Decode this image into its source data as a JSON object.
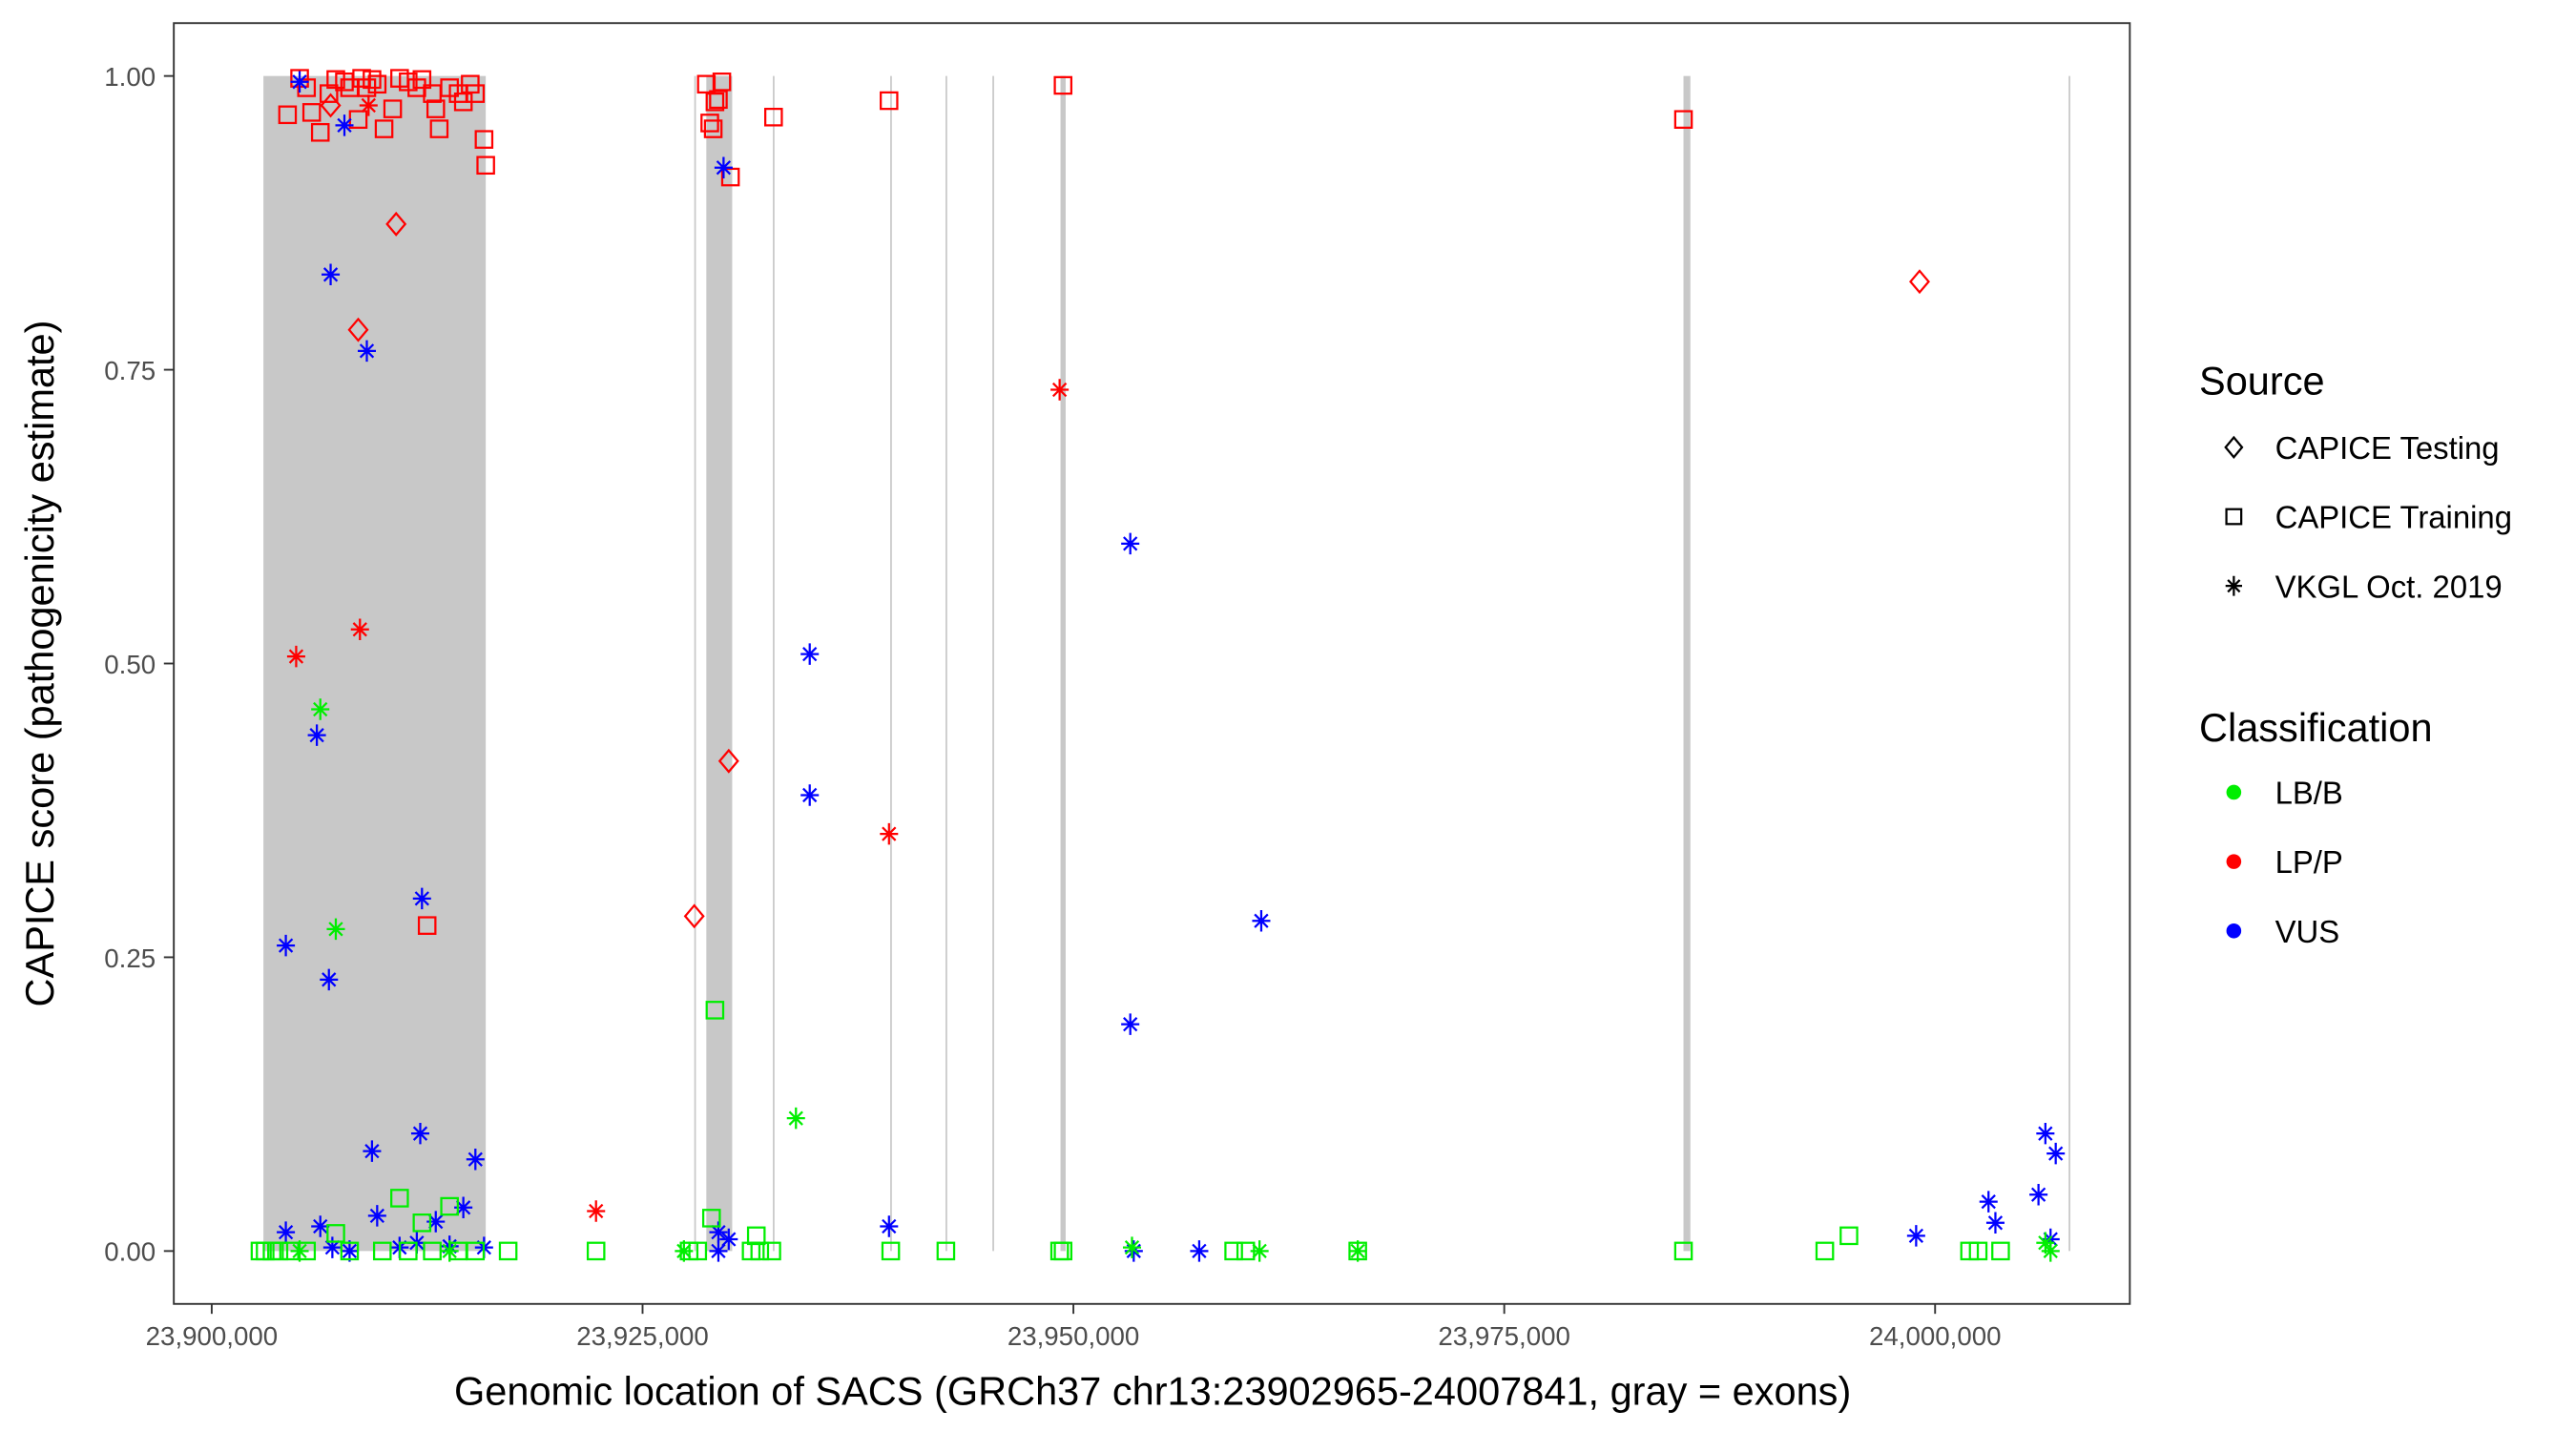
{
  "chart_data": {
    "type": "scatter",
    "xlabel": "Genomic location of SACS (GRCh37 chr13:23902965-24007841, gray = exons)",
    "ylabel": "CAPICE score (pathogenicity estimate)",
    "xlim": [
      23897800,
      24011300
    ],
    "ylim": [
      -0.045,
      1.045
    ],
    "x_ticks": [
      23900000,
      23925000,
      23950000,
      23975000,
      24000000
    ],
    "x_tick_labels": [
      "23,900,000",
      "23,925,000",
      "23,950,000",
      "23,975,000",
      "24,000,000"
    ],
    "y_ticks": [
      0,
      0.25,
      0.5,
      0.75,
      1.0
    ],
    "y_tick_labels": [
      "0.00",
      "0.25",
      "0.50",
      "0.75",
      "1.00"
    ],
    "grid": false,
    "exons": [
      [
        23903000,
        23915900
      ],
      [
        23928000,
        23928060
      ],
      [
        23928700,
        23930200
      ],
      [
        23932560,
        23932620
      ],
      [
        23939370,
        23939430
      ],
      [
        23942580,
        23942640
      ],
      [
        23945300,
        23945360
      ],
      [
        23949250,
        23949550
      ],
      [
        23985400,
        23985800
      ],
      [
        24007750,
        24007810
      ]
    ],
    "exon_color": "#c8c8c8",
    "legend_placement": "right",
    "legend": {
      "source_title": "Source",
      "sources": [
        {
          "key": "testing",
          "label": "CAPICE Testing",
          "shape": "diamond"
        },
        {
          "key": "training",
          "label": "CAPICE Training",
          "shape": "square"
        },
        {
          "key": "vkgl",
          "label": "VKGL Oct. 2019",
          "shape": "asterisk"
        }
      ],
      "class_title": "Classification",
      "classes": [
        {
          "key": "LB/B",
          "label": "LB/B",
          "color": "#00ee00"
        },
        {
          "key": "LP/P",
          "label": "LP/P",
          "color": "#ff0000"
        },
        {
          "key": "VUS",
          "label": "VUS",
          "color": "#0000ff"
        }
      ]
    },
    "points": [
      [
        23904400,
        0.967,
        "training",
        "LP/P"
      ],
      [
        23905100,
        0.998,
        "training",
        "LP/P"
      ],
      [
        23905500,
        0.99,
        "training",
        "LP/P"
      ],
      [
        23905800,
        0.969,
        "training",
        "LP/P"
      ],
      [
        23906300,
        0.952,
        "training",
        "LP/P"
      ],
      [
        23906800,
        0.985,
        "training",
        "LP/P"
      ],
      [
        23907200,
        0.997,
        "training",
        "LP/P"
      ],
      [
        23907700,
        0.995,
        "training",
        "LP/P"
      ],
      [
        23908000,
        0.99,
        "training",
        "LP/P"
      ],
      [
        23908500,
        0.963,
        "training",
        "LP/P"
      ],
      [
        23908700,
        0.998,
        "training",
        "LP/P"
      ],
      [
        23909000,
        0.99,
        "training",
        "LP/P"
      ],
      [
        23909300,
        0.997,
        "training",
        "LP/P"
      ],
      [
        23909600,
        0.993,
        "training",
        "LP/P"
      ],
      [
        23910000,
        0.955,
        "training",
        "LP/P"
      ],
      [
        23910500,
        0.972,
        "training",
        "LP/P"
      ],
      [
        23910900,
        0.998,
        "training",
        "LP/P"
      ],
      [
        23911400,
        0.995,
        "training",
        "LP/P"
      ],
      [
        23911900,
        0.99,
        "training",
        "LP/P"
      ],
      [
        23912200,
        0.997,
        "training",
        "LP/P"
      ],
      [
        23912800,
        0.985,
        "training",
        "LP/P"
      ],
      [
        23913000,
        0.972,
        "training",
        "LP/P"
      ],
      [
        23913200,
        0.955,
        "training",
        "LP/P"
      ],
      [
        23913800,
        0.99,
        "training",
        "LP/P"
      ],
      [
        23914300,
        0.985,
        "training",
        "LP/P"
      ],
      [
        23914600,
        0.978,
        "training",
        "LP/P"
      ],
      [
        23915000,
        0.993,
        "training",
        "LP/P"
      ],
      [
        23915300,
        0.985,
        "training",
        "LP/P"
      ],
      [
        23915800,
        0.946,
        "training",
        "LP/P"
      ],
      [
        23915900,
        0.924,
        "training",
        "LP/P"
      ],
      [
        23912500,
        0.277,
        "training",
        "LP/P"
      ],
      [
        23928700,
        0.993,
        "training",
        "LP/P"
      ],
      [
        23928900,
        0.96,
        "training",
        "LP/P"
      ],
      [
        23929100,
        0.955,
        "training",
        "LP/P"
      ],
      [
        23929200,
        0.978,
        "training",
        "LP/P"
      ],
      [
        23929400,
        0.98,
        "training",
        "LP/P"
      ],
      [
        23929600,
        0.995,
        "training",
        "LP/P"
      ],
      [
        23930100,
        0.914,
        "training",
        "LP/P"
      ],
      [
        23932600,
        0.965,
        "training",
        "LP/P"
      ],
      [
        23939300,
        0.979,
        "training",
        "LP/P"
      ],
      [
        23949400,
        0.992,
        "training",
        "LP/P"
      ],
      [
        23985400,
        0.963,
        "training",
        "LP/P"
      ],
      [
        23906900,
        0.975,
        "testing",
        "LP/P"
      ],
      [
        23910700,
        0.874,
        "testing",
        "LP/P"
      ],
      [
        23908500,
        0.784,
        "testing",
        "LP/P"
      ],
      [
        23930000,
        0.417,
        "testing",
        "LP/P"
      ],
      [
        23928000,
        0.285,
        "testing",
        "LP/P"
      ],
      [
        23999100,
        0.825,
        "testing",
        "LP/P"
      ],
      [
        23904900,
        0.506,
        "vkgl",
        "LP/P"
      ],
      [
        23908600,
        0.529,
        "vkgl",
        "LP/P"
      ],
      [
        23949200,
        0.733,
        "vkgl",
        "LP/P"
      ],
      [
        23939300,
        0.355,
        "vkgl",
        "LP/P"
      ],
      [
        23922300,
        0.034,
        "vkgl",
        "LP/P"
      ],
      [
        23909100,
        0.975,
        "vkgl",
        "LP/P"
      ],
      [
        23905100,
        0.995,
        "vkgl",
        "VUS"
      ],
      [
        23907700,
        0.958,
        "vkgl",
        "VUS"
      ],
      [
        23906900,
        0.831,
        "vkgl",
        "VUS"
      ],
      [
        23909000,
        0.766,
        "vkgl",
        "VUS"
      ],
      [
        23929700,
        0.922,
        "vkgl",
        "VUS"
      ],
      [
        23953300,
        0.602,
        "vkgl",
        "VUS"
      ],
      [
        23934700,
        0.508,
        "vkgl",
        "VUS"
      ],
      [
        23934700,
        0.388,
        "vkgl",
        "VUS"
      ],
      [
        23906100,
        0.439,
        "vkgl",
        "VUS"
      ],
      [
        23912200,
        0.3,
        "vkgl",
        "VUS"
      ],
      [
        23960900,
        0.281,
        "vkgl",
        "VUS"
      ],
      [
        23904300,
        0.26,
        "vkgl",
        "VUS"
      ],
      [
        23906800,
        0.231,
        "vkgl",
        "VUS"
      ],
      [
        23953300,
        0.193,
        "vkgl",
        "VUS"
      ],
      [
        23909300,
        0.085,
        "vkgl",
        "VUS"
      ],
      [
        23912100,
        0.1,
        "vkgl",
        "VUS"
      ],
      [
        23915300,
        0.078,
        "vkgl",
        "VUS"
      ],
      [
        24006400,
        0.1,
        "vkgl",
        "VUS"
      ],
      [
        24007000,
        0.083,
        "vkgl",
        "VUS"
      ],
      [
        24006000,
        0.048,
        "vkgl",
        "VUS"
      ],
      [
        24003100,
        0.042,
        "vkgl",
        "VUS"
      ],
      [
        24003500,
        0.024,
        "vkgl",
        "VUS"
      ],
      [
        23998900,
        0.013,
        "vkgl",
        "VUS"
      ],
      [
        23939300,
        0.021,
        "vkgl",
        "VUS"
      ],
      [
        24006700,
        0.01,
        "vkgl",
        "VUS"
      ],
      [
        23904300,
        0.016,
        "vkgl",
        "VUS"
      ],
      [
        23906300,
        0.021,
        "vkgl",
        "VUS"
      ],
      [
        23909600,
        0.03,
        "vkgl",
        "VUS"
      ],
      [
        23913000,
        0.025,
        "vkgl",
        "VUS"
      ],
      [
        23914600,
        0.037,
        "vkgl",
        "VUS"
      ],
      [
        23929400,
        0.016,
        "vkgl",
        "VUS"
      ],
      [
        23930000,
        0.01,
        "vkgl",
        "VUS"
      ],
      [
        23953500,
        0.0,
        "vkgl",
        "VUS"
      ],
      [
        23957300,
        0.0,
        "vkgl",
        "VUS"
      ],
      [
        23907000,
        0.003,
        "vkgl",
        "VUS"
      ],
      [
        23910900,
        0.003,
        "vkgl",
        "VUS"
      ],
      [
        23911900,
        0.007,
        "vkgl",
        "VUS"
      ],
      [
        23915800,
        0.003,
        "vkgl",
        "VUS"
      ],
      [
        23929400,
        0.0,
        "vkgl",
        "VUS"
      ],
      [
        23908000,
        0.0,
        "vkgl",
        "VUS"
      ],
      [
        23913800,
        0.004,
        "vkgl",
        "VUS"
      ],
      [
        23906300,
        0.461,
        "vkgl",
        "LB/B"
      ],
      [
        23907200,
        0.274,
        "vkgl",
        "LB/B"
      ],
      [
        23933900,
        0.113,
        "vkgl",
        "LB/B"
      ],
      [
        23927400,
        0.0,
        "vkgl",
        "LB/B"
      ],
      [
        23960800,
        0.0,
        "vkgl",
        "LB/B"
      ],
      [
        23966500,
        0.0,
        "vkgl",
        "LB/B"
      ],
      [
        24006400,
        0.007,
        "vkgl",
        "LB/B"
      ],
      [
        23953400,
        0.003,
        "vkgl",
        "LB/B"
      ],
      [
        23905100,
        0.0,
        "vkgl",
        "LB/B"
      ],
      [
        23913800,
        0.0,
        "vkgl",
        "LB/B"
      ],
      [
        24006700,
        0.0,
        "vkgl",
        "LB/B"
      ],
      [
        23929200,
        0.205,
        "training",
        "LB/B"
      ],
      [
        23929000,
        0.028,
        "training",
        "LB/B"
      ],
      [
        23910900,
        0.045,
        "training",
        "LB/B"
      ],
      [
        23913800,
        0.038,
        "training",
        "LB/B"
      ],
      [
        23912200,
        0.024,
        "training",
        "LB/B"
      ],
      [
        23931600,
        0.013,
        "training",
        "LB/B"
      ],
      [
        23995000,
        0.013,
        "training",
        "LB/B"
      ],
      [
        23907200,
        0.015,
        "training",
        "LB/B"
      ],
      [
        23902800,
        0.0,
        "training",
        "LB/B"
      ],
      [
        23903100,
        0.0,
        "training",
        "LB/B"
      ],
      [
        23903500,
        0.0,
        "training",
        "LB/B"
      ],
      [
        23903900,
        0.0,
        "training",
        "LB/B"
      ],
      [
        23904600,
        0.0,
        "training",
        "LB/B"
      ],
      [
        23905500,
        0.0,
        "training",
        "LB/B"
      ],
      [
        23908000,
        0.0,
        "training",
        "LB/B"
      ],
      [
        23909900,
        0.0,
        "training",
        "LB/B"
      ],
      [
        23911400,
        0.0,
        "training",
        "LB/B"
      ],
      [
        23912800,
        0.0,
        "training",
        "LB/B"
      ],
      [
        23914300,
        0.0,
        "training",
        "LB/B"
      ],
      [
        23915300,
        0.0,
        "training",
        "LB/B"
      ],
      [
        23917200,
        0.0,
        "training",
        "LB/B"
      ],
      [
        23922300,
        0.0,
        "training",
        "LB/B"
      ],
      [
        23927700,
        0.0,
        "training",
        "LB/B"
      ],
      [
        23928200,
        0.0,
        "training",
        "LB/B"
      ],
      [
        23931300,
        0.0,
        "training",
        "LB/B"
      ],
      [
        23931800,
        0.0,
        "training",
        "LB/B"
      ],
      [
        23932500,
        0.0,
        "training",
        "LB/B"
      ],
      [
        23939400,
        0.0,
        "training",
        "LB/B"
      ],
      [
        23942600,
        0.0,
        "training",
        "LB/B"
      ],
      [
        23949200,
        0.0,
        "training",
        "LB/B"
      ],
      [
        23949400,
        0.0,
        "training",
        "LB/B"
      ],
      [
        23959300,
        0.0,
        "training",
        "LB/B"
      ],
      [
        23960000,
        0.0,
        "training",
        "LB/B"
      ],
      [
        23966500,
        0.0,
        "training",
        "LB/B"
      ],
      [
        23985400,
        0.0,
        "training",
        "LB/B"
      ],
      [
        23993600,
        0.0,
        "training",
        "LB/B"
      ],
      [
        24002000,
        0.0,
        "training",
        "LB/B"
      ],
      [
        24002500,
        0.0,
        "training",
        "LB/B"
      ],
      [
        24003800,
        0.0,
        "training",
        "LB/B"
      ]
    ]
  }
}
